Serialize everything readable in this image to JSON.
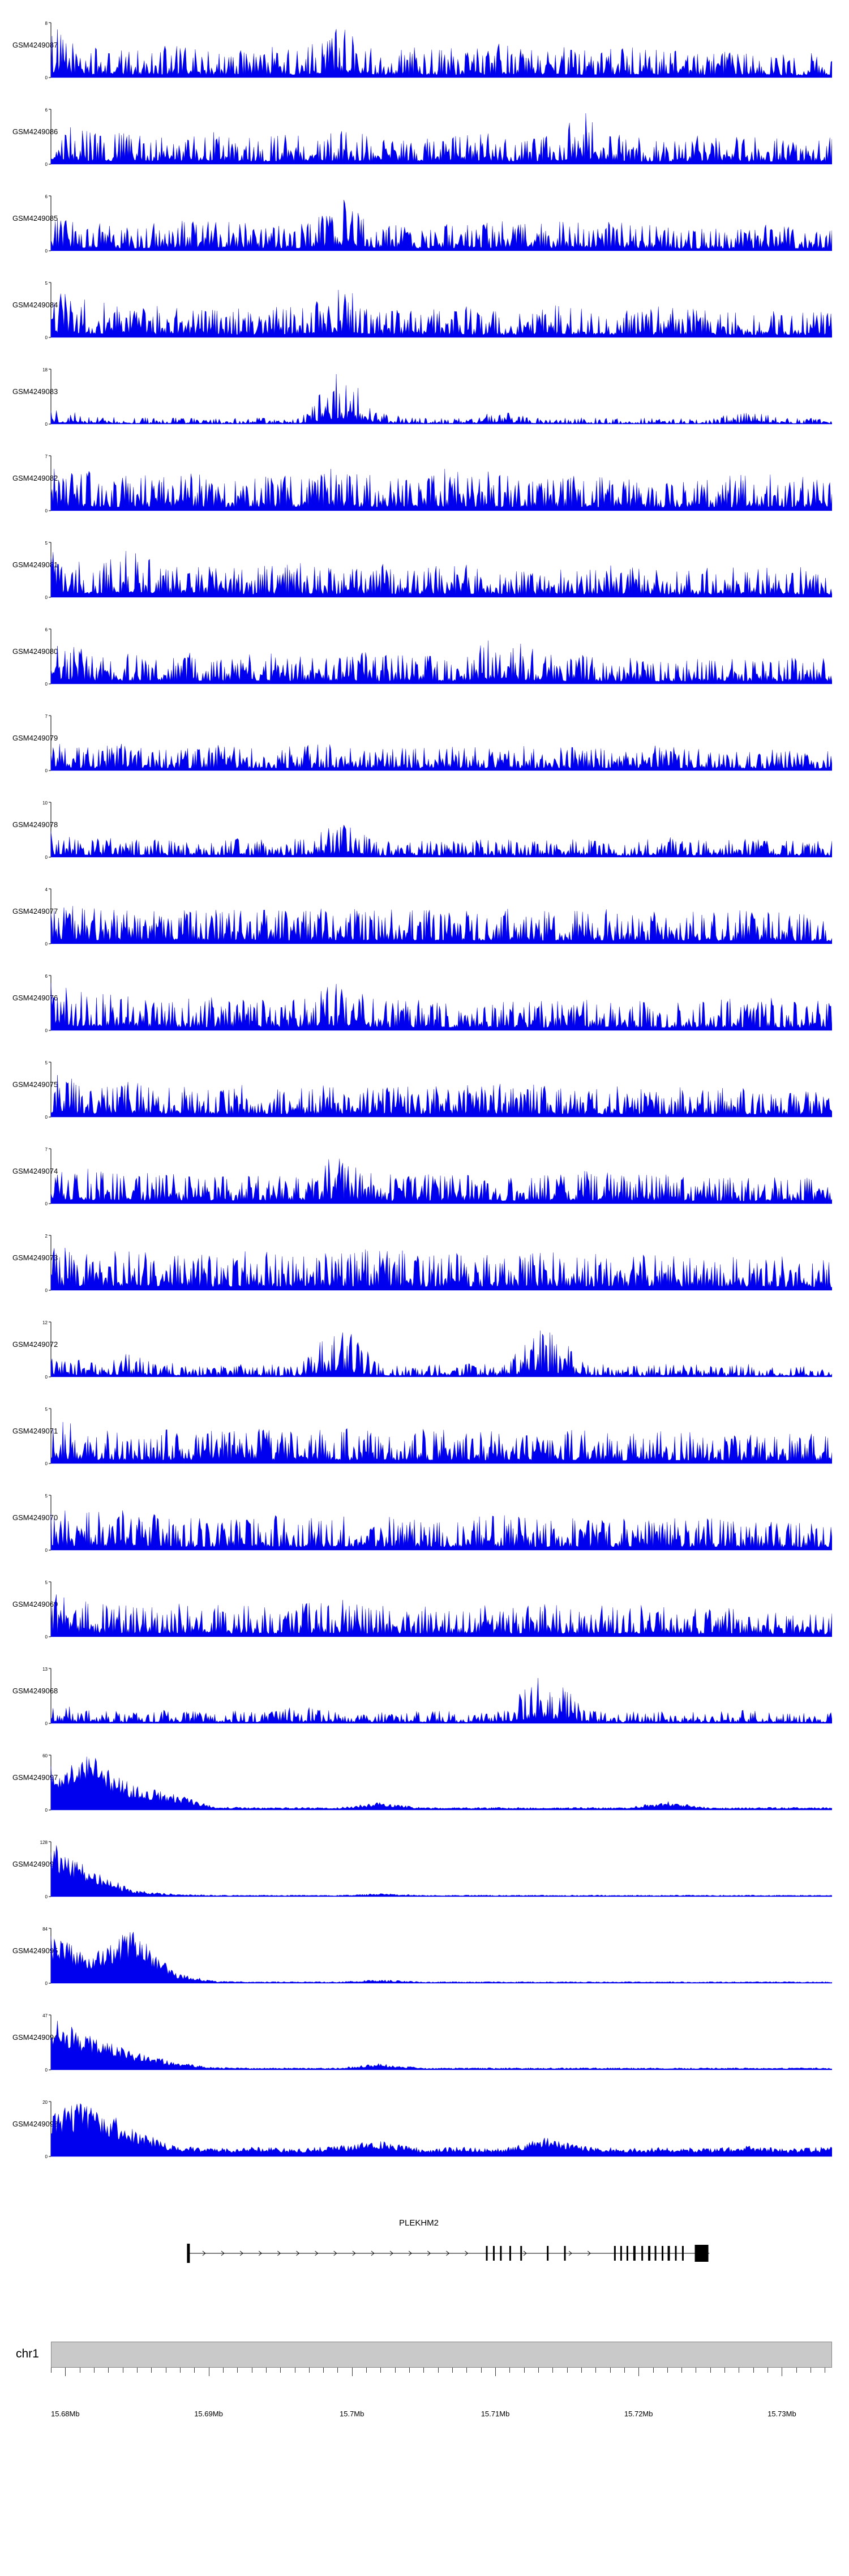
{
  "chart_data": {
    "type": "area",
    "description": "Genome browser read-coverage tracks over chr1 15.68-15.73 Mb around PLEKHM2",
    "signal_color": "#0000ee",
    "zero_label": "0",
    "tracks": [
      {
        "label": "GSM4249087",
        "ymax": "8",
        "solid": false,
        "envelope": [
          0.95,
          0.55,
          0.5,
          0.6,
          0.5,
          0.55,
          0.5,
          1.0,
          0.5,
          0.55,
          0.5,
          0.6,
          0.55,
          0.5,
          0.6,
          0.5,
          0.45,
          0.5,
          0.4,
          0.45
        ]
      },
      {
        "label": "GSM4249086",
        "ymax": "6",
        "solid": false,
        "envelope": [
          0.8,
          0.6,
          0.55,
          0.5,
          0.6,
          0.5,
          0.55,
          0.6,
          0.5,
          0.55,
          0.6,
          0.5,
          0.55,
          0.9,
          0.5,
          0.45,
          0.55,
          0.5,
          0.45,
          0.5
        ]
      },
      {
        "label": "GSM4249085",
        "ymax": "6",
        "solid": false,
        "envelope": [
          0.7,
          0.5,
          0.45,
          0.55,
          0.6,
          0.5,
          0.45,
          1.0,
          0.5,
          0.45,
          0.5,
          0.55,
          0.5,
          0.6,
          0.5,
          0.45,
          0.4,
          0.5,
          0.45,
          0.4
        ]
      },
      {
        "label": "GSM4249084",
        "ymax": "5",
        "solid": false,
        "envelope": [
          0.9,
          0.65,
          0.6,
          0.55,
          0.5,
          0.55,
          0.6,
          0.95,
          0.55,
          0.5,
          0.55,
          0.5,
          0.6,
          0.55,
          0.5,
          0.55,
          0.5,
          0.45,
          0.5,
          0.45
        ]
      },
      {
        "label": "GSM4249083",
        "ymax": "18",
        "solid": false,
        "envelope": [
          0.3,
          0.15,
          0.12,
          0.12,
          0.1,
          0.12,
          0.1,
          1.0,
          0.2,
          0.12,
          0.1,
          0.25,
          0.1,
          0.12,
          0.1,
          0.12,
          0.1,
          0.3,
          0.1,
          0.12
        ]
      },
      {
        "label": "GSM4249082",
        "ymax": "7",
        "solid": false,
        "envelope": [
          0.75,
          0.7,
          0.65,
          0.7,
          0.6,
          0.65,
          0.7,
          0.75,
          0.65,
          0.7,
          0.75,
          0.65,
          0.6,
          0.65,
          0.6,
          0.55,
          0.6,
          0.65,
          0.6,
          0.55
        ]
      },
      {
        "label": "GSM4249081",
        "ymax": "5",
        "solid": false,
        "envelope": [
          0.85,
          0.6,
          0.9,
          0.55,
          0.6,
          0.55,
          0.6,
          0.55,
          0.6,
          0.55,
          0.6,
          0.55,
          0.5,
          0.55,
          0.6,
          0.5,
          0.55,
          0.5,
          0.55,
          0.5
        ]
      },
      {
        "label": "GSM4249080",
        "ymax": "6",
        "solid": false,
        "envelope": [
          0.8,
          0.6,
          0.55,
          0.6,
          0.5,
          0.55,
          0.5,
          0.6,
          0.55,
          0.5,
          0.55,
          0.9,
          0.5,
          0.55,
          0.5,
          0.45,
          0.5,
          0.45,
          0.5,
          0.45
        ]
      },
      {
        "label": "GSM4249079",
        "ymax": "7",
        "solid": false,
        "envelope": [
          0.6,
          0.45,
          0.5,
          0.4,
          0.45,
          0.4,
          0.45,
          0.5,
          0.4,
          0.45,
          0.5,
          0.45,
          0.4,
          0.45,
          0.4,
          0.45,
          0.4,
          0.35,
          0.4,
          0.35
        ]
      },
      {
        "label": "GSM4249078",
        "ymax": "10",
        "solid": false,
        "envelope": [
          0.5,
          0.35,
          0.3,
          0.35,
          0.4,
          0.3,
          0.35,
          0.6,
          0.3,
          0.35,
          0.3,
          0.35,
          0.3,
          0.35,
          0.3,
          0.35,
          0.3,
          0.35,
          0.3,
          0.3
        ]
      },
      {
        "label": "GSM4249077",
        "ymax": "4",
        "solid": false,
        "envelope": [
          0.8,
          0.65,
          0.6,
          0.65,
          0.6,
          0.65,
          0.6,
          0.65,
          0.6,
          0.65,
          0.6,
          0.65,
          0.6,
          0.65,
          0.55,
          0.6,
          0.55,
          0.6,
          0.55,
          0.5
        ]
      },
      {
        "label": "GSM4249076",
        "ymax": "6",
        "solid": false,
        "envelope": [
          0.85,
          0.7,
          0.6,
          0.55,
          0.6,
          0.55,
          0.6,
          0.9,
          0.55,
          0.6,
          0.55,
          0.6,
          0.55,
          0.6,
          0.55,
          0.5,
          0.55,
          0.6,
          0.55,
          0.5
        ]
      },
      {
        "label": "GSM4249075",
        "ymax": "5",
        "solid": false,
        "envelope": [
          0.8,
          0.6,
          0.65,
          0.6,
          0.55,
          0.6,
          0.55,
          0.6,
          0.55,
          0.6,
          0.55,
          0.6,
          0.55,
          0.5,
          0.55,
          0.5,
          0.55,
          0.5,
          0.45,
          0.5
        ]
      },
      {
        "label": "GSM4249074",
        "ymax": "7",
        "solid": false,
        "envelope": [
          0.75,
          0.6,
          0.55,
          0.6,
          0.55,
          0.5,
          0.55,
          0.9,
          0.55,
          0.5,
          0.55,
          0.5,
          0.55,
          0.6,
          0.5,
          0.55,
          0.5,
          0.45,
          0.5,
          0.45
        ]
      },
      {
        "label": "GSM4249073",
        "ymax": "2",
        "solid": false,
        "envelope": [
          0.8,
          0.7,
          0.75,
          0.7,
          0.65,
          0.7,
          0.65,
          0.7,
          0.75,
          0.65,
          0.7,
          0.65,
          0.7,
          0.65,
          0.6,
          0.65,
          0.6,
          0.65,
          0.6,
          0.55
        ]
      },
      {
        "label": "GSM4249072",
        "ymax": "12",
        "solid": false,
        "envelope": [
          0.35,
          0.3,
          0.45,
          0.25,
          0.2,
          0.25,
          0.2,
          1.0,
          0.25,
          0.2,
          0.25,
          0.2,
          0.95,
          0.25,
          0.2,
          0.25,
          0.2,
          0.25,
          0.2,
          0.2
        ]
      },
      {
        "label": "GSM4249071",
        "ymax": "5",
        "solid": false,
        "envelope": [
          0.8,
          0.65,
          0.6,
          0.65,
          0.6,
          0.65,
          0.6,
          0.65,
          0.6,
          0.65,
          0.6,
          0.55,
          0.6,
          0.65,
          0.55,
          0.6,
          0.55,
          0.5,
          0.55,
          0.5
        ]
      },
      {
        "label": "GSM4249070",
        "ymax": "5",
        "solid": false,
        "envelope": [
          0.85,
          0.7,
          0.75,
          0.65,
          0.6,
          0.65,
          0.6,
          0.65,
          0.6,
          0.55,
          0.6,
          0.65,
          0.6,
          0.55,
          0.6,
          0.55,
          0.6,
          0.55,
          0.5,
          0.55
        ]
      },
      {
        "label": "GSM4249069",
        "ymax": "5",
        "solid": false,
        "envelope": [
          0.8,
          0.65,
          0.6,
          0.65,
          0.6,
          0.55,
          0.6,
          0.65,
          0.6,
          0.55,
          0.6,
          0.55,
          0.6,
          0.55,
          0.6,
          0.55,
          0.5,
          0.55,
          0.5,
          0.45
        ]
      },
      {
        "label": "GSM4249068",
        "ymax": "13",
        "solid": false,
        "envelope": [
          0.35,
          0.25,
          0.2,
          0.25,
          0.2,
          0.25,
          0.3,
          0.25,
          0.2,
          0.25,
          0.2,
          0.25,
          1.0,
          0.25,
          0.2,
          0.25,
          0.2,
          0.25,
          0.2,
          0.2
        ]
      },
      {
        "label": "GSM4249097",
        "ymax": "60",
        "solid": true,
        "envelope": [
          0.85,
          1.0,
          0.45,
          0.3,
          0.06,
          0.05,
          0.05,
          0.05,
          0.14,
          0.05,
          0.05,
          0.05,
          0.05,
          0.05,
          0.05,
          0.16,
          0.05,
          0.05,
          0.05,
          0.05
        ]
      },
      {
        "label": "GSM4249096",
        "ymax": "128",
        "solid": true,
        "envelope": [
          1.0,
          0.5,
          0.12,
          0.05,
          0.03,
          0.03,
          0.03,
          0.03,
          0.06,
          0.03,
          0.03,
          0.03,
          0.03,
          0.03,
          0.03,
          0.03,
          0.03,
          0.03,
          0.03,
          0.03
        ]
      },
      {
        "label": "GSM4249095",
        "ymax": "84",
        "solid": true,
        "envelope": [
          0.9,
          0.55,
          1.0,
          0.2,
          0.04,
          0.03,
          0.03,
          0.03,
          0.07,
          0.03,
          0.03,
          0.03,
          0.03,
          0.03,
          0.03,
          0.03,
          0.03,
          0.03,
          0.03,
          0.03
        ]
      },
      {
        "label": "GSM4249094",
        "ymax": "47",
        "solid": true,
        "envelope": [
          1.0,
          0.6,
          0.35,
          0.15,
          0.05,
          0.04,
          0.04,
          0.04,
          0.12,
          0.04,
          0.04,
          0.04,
          0.04,
          0.04,
          0.04,
          0.04,
          0.04,
          0.04,
          0.04,
          0.04
        ]
      },
      {
        "label": "GSM4249093",
        "ymax": "20",
        "solid": true,
        "envelope": [
          0.9,
          1.0,
          0.5,
          0.2,
          0.15,
          0.18,
          0.15,
          0.2,
          0.3,
          0.15,
          0.18,
          0.15,
          0.35,
          0.2,
          0.15,
          0.18,
          0.15,
          0.2,
          0.15,
          0.18
        ]
      }
    ],
    "gene": {
      "name": "PLEKHM2",
      "strand": "+",
      "span": [
        0.176,
        0.843
      ],
      "arrow_segments": [
        [
          0.197,
          0.55
        ],
        [
          0.608,
          0.628
        ],
        [
          0.666,
          0.714
        ]
      ],
      "exons": [
        {
          "x": 0.176,
          "w": 5,
          "h": 34
        },
        {
          "x": 0.558,
          "w": 3
        },
        {
          "x": 0.567,
          "w": 3
        },
        {
          "x": 0.576,
          "w": 3
        },
        {
          "x": 0.588,
          "w": 3
        },
        {
          "x": 0.602,
          "w": 3
        },
        {
          "x": 0.636,
          "w": 3
        },
        {
          "x": 0.658,
          "w": 3
        },
        {
          "x": 0.722,
          "w": 3
        },
        {
          "x": 0.73,
          "w": 3
        },
        {
          "x": 0.738,
          "w": 3
        },
        {
          "x": 0.747,
          "w": 4
        },
        {
          "x": 0.757,
          "w": 3
        },
        {
          "x": 0.766,
          "w": 4
        },
        {
          "x": 0.774,
          "w": 3
        },
        {
          "x": 0.783,
          "w": 3
        },
        {
          "x": 0.791,
          "w": 4
        },
        {
          "x": 0.8,
          "w": 3
        },
        {
          "x": 0.809,
          "w": 3
        },
        {
          "x": 0.833,
          "w": 24,
          "h": 30
        }
      ]
    },
    "chromosome": {
      "name": "chr1",
      "axis_start_mb": 15.679,
      "axis_end_mb": 15.7335,
      "minor_tick_mb": 0.001,
      "major_ticks": [
        {
          "pos_mb": 15.68,
          "label": "15.68Mb"
        },
        {
          "pos_mb": 15.69,
          "label": "15.69Mb"
        },
        {
          "pos_mb": 15.7,
          "label": "15.7Mb"
        },
        {
          "pos_mb": 15.71,
          "label": "15.71Mb"
        },
        {
          "pos_mb": 15.72,
          "label": "15.72Mb"
        },
        {
          "pos_mb": 15.73,
          "label": "15.73Mb"
        }
      ]
    }
  }
}
